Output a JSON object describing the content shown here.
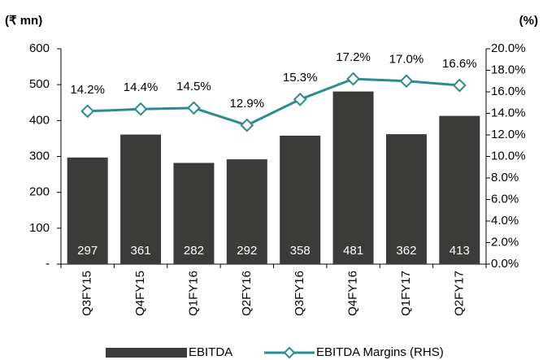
{
  "chart_data": {
    "type": "bar",
    "y_label": "(₹ mn)",
    "y2_label": "(%)",
    "categories": [
      "Q3FY15",
      "Q4FY15",
      "Q1FY16",
      "Q2FY16",
      "Q3FY16",
      "Q4FY16",
      "Q1FY17",
      "Q2FY17"
    ],
    "series": [
      {
        "name": "EBITDA",
        "type": "bar",
        "color": "#3b3b39",
        "values": [
          297,
          361,
          282,
          292,
          358,
          481,
          362,
          413
        ]
      },
      {
        "name": "EBITDA Margins (RHS)",
        "type": "line",
        "axis": "y2",
        "color": "#2a8c8c",
        "values": [
          14.2,
          14.4,
          14.5,
          12.9,
          15.3,
          17.2,
          17.0,
          16.6
        ],
        "value_labels": [
          "14.2%",
          "14.4%",
          "14.5%",
          "12.9%",
          "15.3%",
          "17.2%",
          "17.0%",
          "16.6%"
        ]
      }
    ],
    "ylim": [
      0,
      600
    ],
    "yticks": [
      {
        "value": 0,
        "label": "-"
      },
      100,
      200,
      300,
      400,
      500,
      600
    ],
    "y2lim": [
      0,
      20
    ],
    "y2ticks": [
      {
        "value": 0,
        "label": "0.0%"
      },
      {
        "value": 2,
        "label": "2.0%"
      },
      {
        "value": 4,
        "label": "4.0%"
      },
      {
        "value": 6,
        "label": "6.0%"
      },
      {
        "value": 8,
        "label": "8.0%"
      },
      {
        "value": 10,
        "label": "10.0%"
      },
      {
        "value": 12,
        "label": "12.0%"
      },
      {
        "value": 14,
        "label": "14.0%"
      },
      {
        "value": 16,
        "label": "16.0%"
      },
      {
        "value": 18,
        "label": "18.0%"
      },
      {
        "value": 20,
        "label": "20.0%"
      }
    ],
    "legend": "bottom"
  }
}
